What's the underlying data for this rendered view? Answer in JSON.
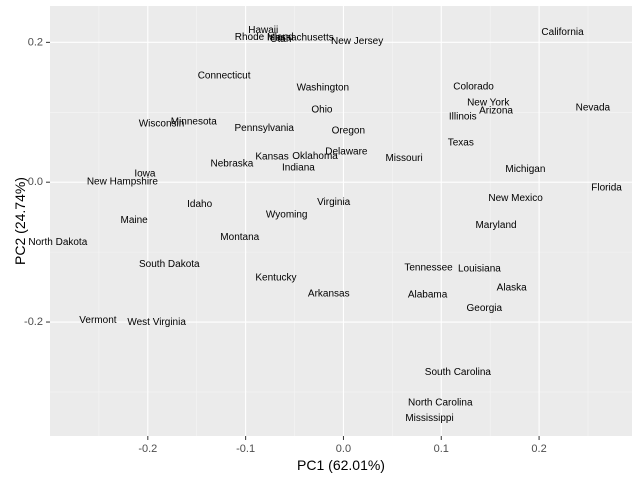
{
  "colors": {
    "panel": "#ebebeb",
    "grid_major": "#ffffff",
    "grid_minor": "#f5f5f5",
    "tick": "#333333"
  },
  "chart_data": {
    "type": "scatter",
    "xlabel": "PC1 (62.01%)",
    "ylabel": "PC2 (24.74%)",
    "xlim": [
      -0.3,
      0.295
    ],
    "ylim": [
      -0.363,
      0.252
    ],
    "x_ticks": [
      -0.2,
      -0.1,
      0.0,
      0.1,
      0.2
    ],
    "x_tick_labels": [
      "-0.2",
      "-0.1",
      "0.0",
      "0.1",
      "0.2"
    ],
    "y_ticks": [
      -0.2,
      0.0,
      0.2
    ],
    "y_tick_labels": [
      "-0.2",
      "0.0",
      "0.2"
    ],
    "grid": true,
    "points": [
      {
        "label": "Hawaii",
        "x": -0.082,
        "y": 0.217
      },
      {
        "label": "Rhode Island",
        "x": -0.081,
        "y": 0.207
      },
      {
        "label": "Massachusetts",
        "x": -0.044,
        "y": 0.206
      },
      {
        "label": "Utah",
        "x": -0.064,
        "y": 0.204
      },
      {
        "label": "New Jersey",
        "x": 0.014,
        "y": 0.201
      },
      {
        "label": "California",
        "x": 0.224,
        "y": 0.214
      },
      {
        "label": "Connecticut",
        "x": -0.122,
        "y": 0.152
      },
      {
        "label": "Washington",
        "x": -0.021,
        "y": 0.135
      },
      {
        "label": "Colorado",
        "x": 0.133,
        "y": 0.136
      },
      {
        "label": "New York",
        "x": 0.148,
        "y": 0.113
      },
      {
        "label": "Arizona",
        "x": 0.156,
        "y": 0.102
      },
      {
        "label": "Nevada",
        "x": 0.255,
        "y": 0.106
      },
      {
        "label": "Illinois",
        "x": 0.122,
        "y": 0.093
      },
      {
        "label": "Ohio",
        "x": -0.022,
        "y": 0.103
      },
      {
        "label": "Wisconsin",
        "x": -0.186,
        "y": 0.083
      },
      {
        "label": "Minnesota",
        "x": -0.153,
        "y": 0.086
      },
      {
        "label": "Pennsylvania",
        "x": -0.081,
        "y": 0.077
      },
      {
        "label": "Oregon",
        "x": 0.005,
        "y": 0.073
      },
      {
        "label": "Texas",
        "x": 0.12,
        "y": 0.056
      },
      {
        "label": "Delaware",
        "x": 0.003,
        "y": 0.043
      },
      {
        "label": "Oklahoma",
        "x": -0.029,
        "y": 0.037
      },
      {
        "label": "Kansas",
        "x": -0.073,
        "y": 0.036
      },
      {
        "label": "Missouri",
        "x": 0.062,
        "y": 0.034
      },
      {
        "label": "Nebraska",
        "x": -0.114,
        "y": 0.026
      },
      {
        "label": "Indiana",
        "x": -0.046,
        "y": 0.02
      },
      {
        "label": "Michigan",
        "x": 0.186,
        "y": 0.018
      },
      {
        "label": "Iowa",
        "x": -0.203,
        "y": 0.012
      },
      {
        "label": "New Hampshire",
        "x": -0.226,
        "y": 0.0
      },
      {
        "label": "Florida",
        "x": 0.269,
        "y": -0.008
      },
      {
        "label": "New Mexico",
        "x": 0.176,
        "y": -0.023
      },
      {
        "label": "Idaho",
        "x": -0.147,
        "y": -0.032
      },
      {
        "label": "Virginia",
        "x": -0.01,
        "y": -0.029
      },
      {
        "label": "Wyoming",
        "x": -0.058,
        "y": -0.047
      },
      {
        "label": "Maine",
        "x": -0.214,
        "y": -0.055
      },
      {
        "label": "Maryland",
        "x": 0.156,
        "y": -0.062
      },
      {
        "label": "Montana",
        "x": -0.106,
        "y": -0.079
      },
      {
        "label": "North Dakota",
        "x": -0.292,
        "y": -0.086
      },
      {
        "label": "South Dakota",
        "x": -0.178,
        "y": -0.118
      },
      {
        "label": "Tennessee",
        "x": 0.087,
        "y": -0.123
      },
      {
        "label": "Louisiana",
        "x": 0.139,
        "y": -0.124
      },
      {
        "label": "Kentucky",
        "x": -0.069,
        "y": -0.137
      },
      {
        "label": "Alaska",
        "x": 0.172,
        "y": -0.151
      },
      {
        "label": "Arkansas",
        "x": -0.015,
        "y": -0.16
      },
      {
        "label": "Alabama",
        "x": 0.086,
        "y": -0.161
      },
      {
        "label": "Georgia",
        "x": 0.144,
        "y": -0.181
      },
      {
        "label": "Vermont",
        "x": -0.251,
        "y": -0.198
      },
      {
        "label": "West Virginia",
        "x": -0.191,
        "y": -0.201
      },
      {
        "label": "South Carolina",
        "x": 0.117,
        "y": -0.272
      },
      {
        "label": "North Carolina",
        "x": 0.099,
        "y": -0.316
      },
      {
        "label": "Mississippi",
        "x": 0.088,
        "y": -0.338
      }
    ]
  }
}
